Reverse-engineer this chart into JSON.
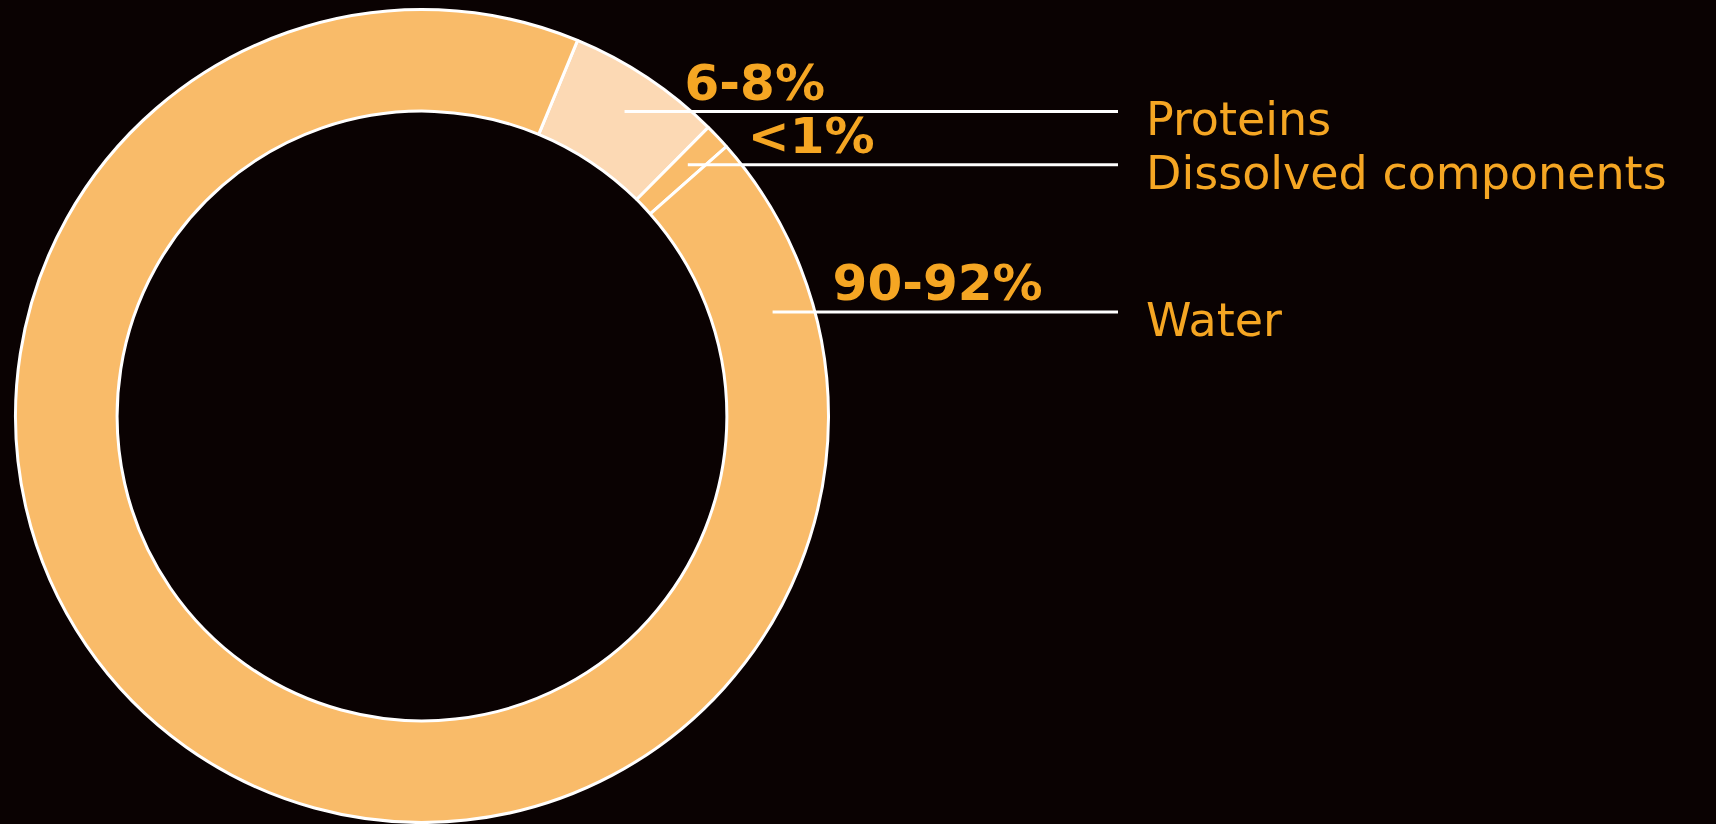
{
  "chart_data": {
    "type": "donut",
    "categories": [
      "Proteins",
      "Dissolved components",
      "Water"
    ],
    "values": [
      6,
      1,
      90
    ],
    "colors": [
      "#fcd9b4",
      "#f9bb69",
      "#f9bb69"
    ],
    "value_labels": [
      "6-8%",
      "<1%",
      "90-92%"
    ]
  }
}
